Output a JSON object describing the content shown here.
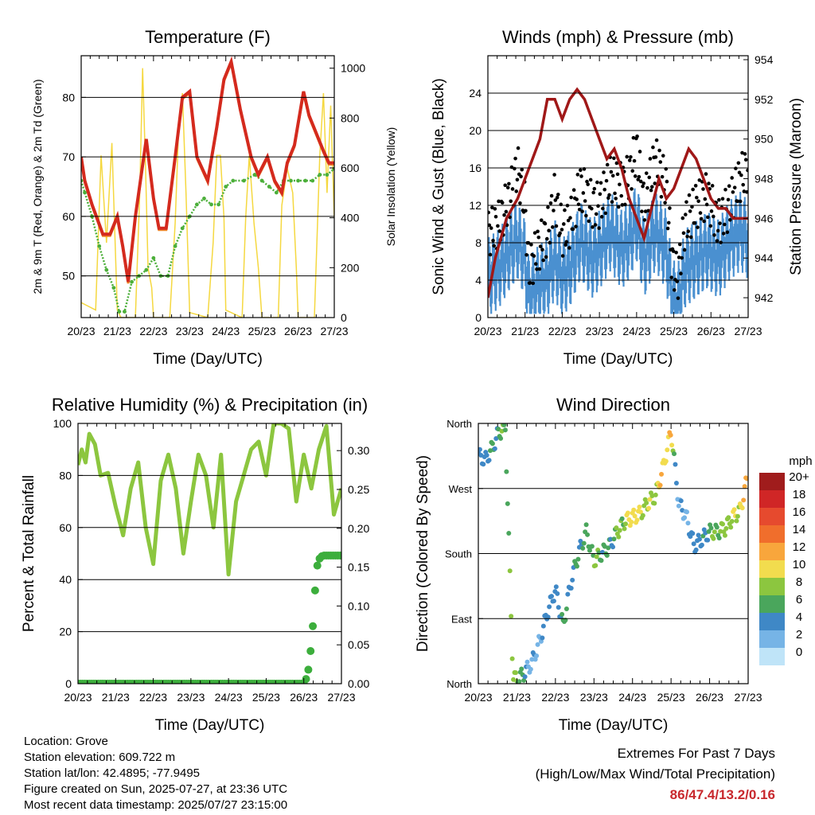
{
  "domain": "Chart",
  "x_ticks": [
    "20/23",
    "21/23",
    "22/23",
    "23/23",
    "24/23",
    "25/23",
    "26/23",
    "27/23"
  ],
  "chart_data": [
    {
      "id": "temperature",
      "type": "line",
      "title": "Temperature (F)",
      "xlabel": "Time (Day/UTC)",
      "ylabel": "2m & 9m T (Red, Orange) & 2m Td (Green)",
      "ylabel_right": "Solar Insolation (Yellow)",
      "ylim": [
        43,
        87
      ],
      "yticks": [
        50,
        60,
        70,
        80
      ],
      "ylim_right": [
        0,
        1050
      ],
      "yticks_right": [
        0,
        200,
        400,
        600,
        800,
        1000
      ],
      "colors": {
        "t2m": "#d42a1e",
        "t9m": "#f08a2a",
        "td": "#4caf3a",
        "solar": "#f5d840"
      },
      "series": [
        {
          "key": "t2m",
          "x": [
            0,
            0.1,
            0.3,
            0.6,
            0.8,
            1.0,
            1.15,
            1.3,
            1.5,
            1.8,
            2.0,
            2.15,
            2.35,
            2.6,
            2.8,
            3.0,
            3.2,
            3.5,
            3.75,
            3.95,
            4.15,
            4.4,
            4.7,
            4.9,
            5.15,
            5.35,
            5.55,
            5.7,
            5.9,
            6.15,
            6.3,
            6.5,
            6.7,
            6.85,
            7.0
          ],
          "values": [
            70,
            66,
            62,
            57,
            57,
            60,
            55,
            49,
            60,
            73,
            63,
            58,
            58,
            70,
            80,
            81,
            70,
            66,
            75,
            83,
            86,
            78,
            70,
            67,
            70,
            66,
            64,
            69,
            72,
            81,
            77,
            74,
            71,
            69,
            69
          ]
        },
        {
          "key": "td",
          "x": [
            0,
            0.1,
            0.3,
            0.5,
            0.7,
            0.9,
            1.05,
            1.2,
            1.4,
            1.6,
            1.8,
            2.0,
            2.2,
            2.4,
            2.6,
            2.8,
            3.0,
            3.2,
            3.4,
            3.6,
            3.8,
            4.0,
            4.2,
            4.5,
            4.8,
            5.0,
            5.2,
            5.4,
            5.6,
            5.8,
            6.0,
            6.2,
            6.4,
            6.6,
            6.8,
            7.0
          ],
          "values": [
            66,
            64,
            60,
            55,
            51,
            48,
            44,
            44,
            49,
            50,
            51,
            53,
            50,
            50,
            55,
            58,
            60,
            62,
            63,
            62,
            62,
            65,
            66,
            66,
            67,
            66,
            65,
            64,
            66,
            66,
            66,
            66,
            66,
            67,
            67,
            68
          ]
        },
        {
          "key": "solar",
          "x": [
            0,
            0.4,
            0.55,
            0.7,
            0.85,
            1.0,
            1.1,
            1.5,
            1.62,
            1.7,
            1.78,
            1.85,
            1.95,
            2.0,
            2.45,
            2.6,
            2.7,
            2.8,
            2.9,
            3.0,
            3.5,
            3.65,
            3.75,
            3.85,
            3.95,
            4.0,
            4.45,
            4.55,
            4.65,
            4.78,
            4.9,
            5.0,
            5.45,
            5.55,
            5.7,
            5.85,
            5.95,
            6.0,
            6.45,
            6.6,
            6.7,
            6.8,
            6.9,
            7.0
          ],
          "values": [
            60,
            30,
            650,
            300,
            700,
            30,
            0,
            0,
            500,
            1000,
            600,
            200,
            120,
            0,
            0,
            380,
            780,
            900,
            500,
            20,
            0,
            300,
            650,
            650,
            400,
            30,
            0,
            400,
            650,
            380,
            200,
            0,
            0,
            450,
            600,
            500,
            200,
            0,
            0,
            650,
            900,
            500,
            850,
            400
          ]
        }
      ]
    },
    {
      "id": "winds",
      "type": "scatter",
      "title": "Winds (mph) & Pressure (mb)",
      "xlabel": "Time (Day/UTC)",
      "ylabel": "Sonic Wind & Gust (Blue, Black)",
      "ylabel_right": "Station Pressure (Maroon)",
      "ylim": [
        0,
        28
      ],
      "yticks": [
        0,
        4,
        8,
        12,
        16,
        20,
        24
      ],
      "ylim_right": [
        941,
        954.2
      ],
      "yticks_right": [
        942,
        944,
        946,
        948,
        950,
        952,
        954
      ],
      "colors": {
        "wind": "#4a90d0",
        "gust": "#000000",
        "pressure": "#a01818"
      },
      "series": [
        {
          "key": "wind",
          "x": [
            0,
            0.3,
            0.6,
            0.8,
            1.0,
            1.1,
            1.3,
            1.6,
            1.8,
            2.0,
            2.2,
            2.5,
            2.8,
            3.0,
            3.3,
            3.6,
            3.8,
            4.0,
            4.2,
            4.5,
            4.8,
            4.95,
            5.1,
            5.3,
            5.6,
            5.9,
            6.2,
            6.5,
            6.8,
            7.0
          ],
          "values": [
            5,
            6,
            8,
            9,
            7,
            3,
            4,
            5,
            7,
            5,
            6,
            9,
            7,
            8,
            10,
            8,
            9,
            11,
            7,
            10,
            8,
            3,
            2,
            6,
            7,
            8,
            7,
            9,
            10,
            9
          ]
        },
        {
          "key": "gust",
          "x": [
            0,
            0.3,
            0.6,
            0.8,
            1.0,
            1.1,
            1.3,
            1.6,
            1.8,
            2.0,
            2.2,
            2.5,
            2.8,
            3.0,
            3.3,
            3.6,
            3.8,
            4.0,
            4.2,
            4.5,
            4.8,
            4.95,
            5.1,
            5.3,
            5.6,
            5.9,
            6.2,
            6.5,
            6.8,
            7.0
          ],
          "values": [
            9,
            10,
            13,
            16,
            12,
            5,
            7,
            9,
            13,
            9,
            10,
            14,
            12,
            12,
            15,
            14,
            15,
            18,
            12,
            17,
            14,
            6,
            4,
            10,
            12,
            13,
            10,
            12,
            15,
            16
          ]
        },
        {
          "key": "pressure",
          "x": [
            0,
            0.2,
            0.5,
            0.8,
            1.0,
            1.2,
            1.4,
            1.6,
            1.8,
            2.0,
            2.2,
            2.4,
            2.6,
            2.8,
            3.0,
            3.2,
            3.4,
            3.6,
            3.8,
            4.0,
            4.2,
            4.4,
            4.6,
            4.8,
            5.0,
            5.2,
            5.4,
            5.6,
            5.8,
            6.0,
            6.2,
            6.4,
            6.6,
            6.8,
            7.0
          ],
          "values": [
            942,
            944,
            946,
            947,
            948,
            949,
            950,
            952,
            952,
            951,
            952,
            952.5,
            952,
            951,
            950,
            949,
            949.5,
            948.5,
            947,
            946,
            945,
            946.5,
            948,
            947,
            947.5,
            948.5,
            949.5,
            949,
            948,
            947,
            946.5,
            946.5,
            946,
            946,
            946
          ]
        }
      ]
    },
    {
      "id": "humidity",
      "type": "line",
      "title": "Relative Humidity (%) & Precipitation (in)",
      "xlabel": "Time (Day/UTC)",
      "ylabel": "Percent & Total Rainfall",
      "ylim": [
        0,
        100
      ],
      "yticks": [
        0,
        20,
        40,
        60,
        80,
        100
      ],
      "ylim_right": [
        0,
        0.335
      ],
      "yticks_right": [
        "0.00",
        "0.05",
        "0.10",
        "0.15",
        "0.20",
        "0.25",
        "0.30"
      ],
      "colors": {
        "rh": "#8cc63f",
        "precip": "#3cae3c"
      },
      "series": [
        {
          "key": "rh",
          "x": [
            0,
            0.1,
            0.2,
            0.3,
            0.45,
            0.6,
            0.8,
            1.0,
            1.2,
            1.4,
            1.6,
            1.8,
            2.0,
            2.2,
            2.4,
            2.6,
            2.8,
            3.0,
            3.2,
            3.4,
            3.6,
            3.8,
            4.0,
            4.2,
            4.4,
            4.6,
            4.8,
            5.0,
            5.2,
            5.4,
            5.6,
            5.8,
            6.0,
            6.2,
            6.4,
            6.6,
            6.8,
            7.0
          ],
          "values": [
            84,
            90,
            85,
            96,
            92,
            80,
            81,
            68,
            57,
            75,
            85,
            60,
            46,
            78,
            88,
            75,
            50,
            70,
            88,
            80,
            60,
            88,
            42,
            70,
            80,
            90,
            93,
            80,
            100,
            100,
            98,
            70,
            88,
            75,
            90,
            99,
            65,
            75
          ]
        },
        {
          "key": "precip",
          "x": [
            0,
            1,
            2,
            3,
            4,
            5,
            6.0,
            6.1,
            6.2,
            6.25,
            6.3,
            6.35,
            6.4,
            6.5,
            6.6,
            6.7,
            6.8,
            7.0
          ],
          "values": [
            0,
            0,
            0,
            0,
            0,
            0,
            0,
            0.01,
            0.05,
            0.08,
            0.12,
            0.15,
            0.16,
            0.165,
            0.165,
            0.165,
            0.165,
            0.165
          ]
        }
      ]
    },
    {
      "id": "direction",
      "type": "scatter",
      "title": "Wind Direction",
      "xlabel": "Time (Day/UTC)",
      "ylabel": "Direction (Colored By Speed)",
      "ylim": [
        0,
        360
      ],
      "yticks": [
        "North",
        "East",
        "South",
        "West",
        "North"
      ],
      "legend_title": "mph",
      "legend_labels": [
        "20+",
        "18",
        "16",
        "14",
        "12",
        "10",
        "8",
        "6",
        "4",
        "2",
        "0"
      ],
      "legend_colors": [
        "#a01c1c",
        "#d02626",
        "#e64a2e",
        "#f06e2c",
        "#f8a63c",
        "#f2dc4e",
        "#8cc63f",
        "#4aa65c",
        "#3f88c6",
        "#76b4e6",
        "#bfe4f8"
      ],
      "series": [
        {
          "key": "dir",
          "x": [
            0,
            0.2,
            0.4,
            0.5,
            0.6,
            0.7,
            0.9,
            1.0,
            1.2,
            1.4,
            1.6,
            1.8,
            2.0,
            2.2,
            2.4,
            2.6,
            2.8,
            3.0,
            3.2,
            3.4,
            3.6,
            3.8,
            4.0,
            4.2,
            4.4,
            4.6,
            4.8,
            5.0,
            5.2,
            5.4,
            5.6,
            5.8,
            6.0,
            6.2,
            6.4,
            6.6,
            6.8,
            7.0
          ],
          "values": [
            315,
            310,
            330,
            345,
            350,
            355,
            10,
            5,
            15,
            30,
            60,
            100,
            130,
            80,
            140,
            180,
            210,
            170,
            180,
            190,
            210,
            225,
            230,
            235,
            250,
            260,
            300,
            350,
            250,
            230,
            190,
            200,
            210,
            210,
            215,
            230,
            240,
            290
          ],
          "speeds": [
            4,
            4,
            5,
            6,
            6,
            7,
            7,
            8,
            4,
            2,
            3,
            4,
            4,
            6,
            4,
            5,
            6,
            7,
            6,
            5,
            7,
            8,
            11,
            9,
            8,
            9,
            11,
            10,
            2,
            3,
            4,
            4,
            6,
            7,
            8,
            8,
            10,
            12
          ]
        }
      ]
    }
  ],
  "info": {
    "location": "Location: Grove",
    "elevation": "Station elevation: 609.722 m",
    "latlon": "Station lat/lon: 42.4895; -77.9495",
    "created": "Figure created on Sun, 2025-07-27, at 23:36 UTC",
    "recent": "Most recent data timestamp: 2025/07/27 23:15:00"
  },
  "extremes": {
    "title": "Extremes For Past 7 Days",
    "subtitle": "(High/Low/Max Wind/Total Precipitation)",
    "values": "86/47.4/13.2/0.16"
  }
}
